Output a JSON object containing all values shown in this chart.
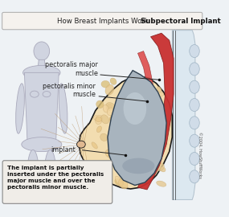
{
  "title_regular": "How Breast Implants Work : ",
  "title_bold": "Subpectoral Implant",
  "bg_color": "#eef2f5",
  "border_color": "#999999",
  "label_pect_major": "pectoralis major\nmuscle",
  "label_pect_minor": "pectoralis minor\nmuscle",
  "label_implant": "implant",
  "caption": "The implant is partially\ninserted under the pectoralis\nmajor muscle and over the\npectoralis minor muscle.",
  "copyright": "©2004, HowStuffWorks",
  "skin_color": "#f2ddb0",
  "tissue_tan": "#e8c98a",
  "muscle_red": "#c83030",
  "muscle_pink": "#d4776a",
  "implant_gray": "#a8b4be",
  "implant_light": "#c8d4dc",
  "chest_color": "#dce8f0",
  "chest_border": "#b0c0cc",
  "rib_color": "#c8d8e4",
  "outline_color": "#1a1a1a",
  "silhouette_color": "#d8dce8",
  "silhouette_edge": "#b8bcc8",
  "title_bg": "#f5f2ee",
  "caption_bg": "#f0ede8",
  "figure_bg": "#eef2f5"
}
